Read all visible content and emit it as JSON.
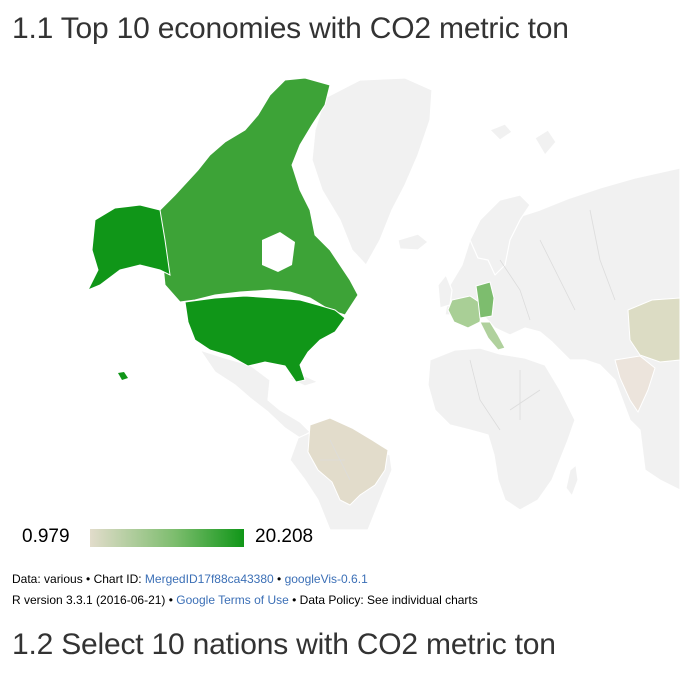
{
  "titles": {
    "first": "1.1 Top 10 economies with CO2 metric ton",
    "second": "1.2 Select 10 nations with CO2 metric ton"
  },
  "legend": {
    "min": "0.979",
    "max": "20.208",
    "color_min": "#e2dccb",
    "color_max": "#109618"
  },
  "footer": {
    "line1_prefix": "Data: various • Chart ID: ",
    "chart_id_link": "MergedID17f88ca43380",
    "separator": " • ",
    "package_link": "googleVis-0.6.1",
    "line2_prefix": "R version 3.3.1 (2016-06-21) • ",
    "terms_link": "Google Terms of Use",
    "line2_suffix": " • Data Policy: See individual charts"
  },
  "map": {
    "colors": {
      "canada": "#3da337",
      "united_states": "#109618",
      "alaska": "#109618",
      "germany": "#7dbd6e",
      "france": "#a9cf96",
      "italy": "#b0d19d",
      "brazil": "#e2dccb",
      "china": "#dcdcc4",
      "india": "#ece4dc",
      "no_data": "#f1f1f1"
    }
  }
}
